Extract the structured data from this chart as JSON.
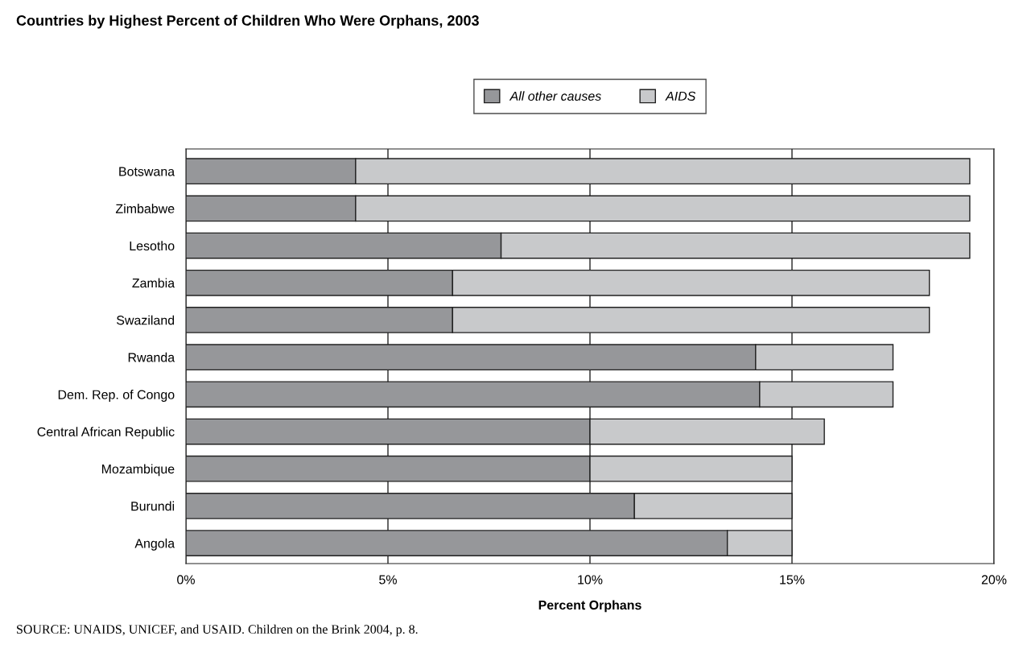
{
  "chart_data": {
    "type": "bar",
    "orientation": "horizontal",
    "stacked": true,
    "title": "Countries by Highest Percent of Children Who Were Orphans, 2003",
    "xlabel": "Percent Orphans",
    "categories": [
      "Botswana",
      "Zimbabwe",
      "Lesotho",
      "Zambia",
      "Swaziland",
      "Rwanda",
      "Dem. Rep. of Congo",
      "Central African Republic",
      "Mozambique",
      "Burundi",
      "Angola"
    ],
    "series": [
      {
        "name": "All other causes",
        "color": "#96979a",
        "values": [
          4.2,
          4.2,
          7.8,
          6.6,
          6.6,
          14.1,
          14.2,
          10.0,
          10.0,
          11.1,
          13.4
        ]
      },
      {
        "name": "AIDS",
        "color": "#c8c9cb",
        "values": [
          15.2,
          15.2,
          11.6,
          11.8,
          11.8,
          3.4,
          3.3,
          5.8,
          5.0,
          3.9,
          1.6
        ]
      }
    ],
    "xlim": [
      0,
      20
    ],
    "xticks": [
      {
        "value": 0,
        "label": "0%"
      },
      {
        "value": 5,
        "label": "5%"
      },
      {
        "value": 10,
        "label": "10%"
      },
      {
        "value": 15,
        "label": "15%"
      },
      {
        "value": 20,
        "label": "20%"
      }
    ],
    "grid": "x",
    "legend": "top",
    "annotations": [
      "SOURCE: UNAIDS, UNICEF, and USAID. Children on the Brink 2004, p. 8."
    ]
  }
}
